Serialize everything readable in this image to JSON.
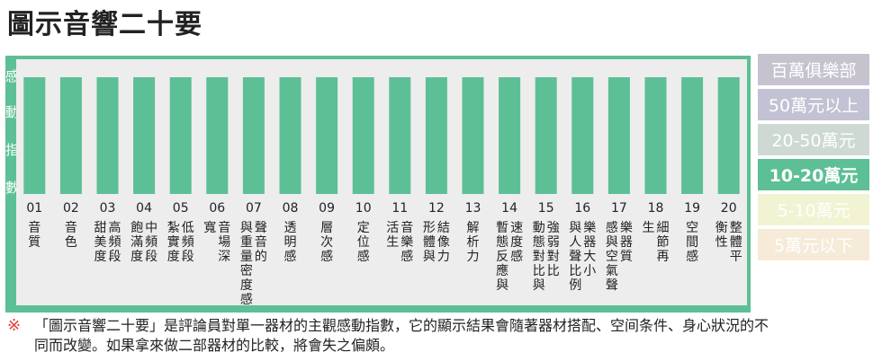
{
  "title": "圖示音響二十要",
  "y_axis_label": [
    "感",
    "動",
    "指",
    "數"
  ],
  "chart_data": {
    "type": "bar",
    "title": "",
    "categories": [
      "01",
      "02",
      "03",
      "04",
      "05",
      "06",
      "07",
      "08",
      "09",
      "10",
      "11",
      "12",
      "13",
      "14",
      "15",
      "16",
      "17",
      "18",
      "19",
      "20"
    ],
    "category_labels": [
      "音質",
      "音色",
      "高頻段",
      "中頻段",
      "低頻段",
      "音場深",
      "聲音的",
      "透明感",
      "層次感",
      "定位感",
      "音樂感",
      "結像力",
      "解析力",
      "速度感",
      "強弱對比",
      "樂器大小",
      "樂器質",
      "細節再",
      "空間感",
      "整體平"
    ],
    "category_labels_col2": [
      "",
      "",
      "甜美度",
      "飽滿度",
      "紮實度",
      "寬",
      "與重量密度感",
      "",
      "",
      "",
      "活生",
      "形體與",
      "",
      "暫態反應與",
      "動態對比與",
      "與人聲比例",
      "感與空氣聲",
      "生",
      "",
      "衡性"
    ],
    "values": [
      100,
      100,
      100,
      100,
      100,
      100,
      100,
      100,
      100,
      100,
      100,
      100,
      100,
      100,
      100,
      100,
      100,
      100,
      100,
      100
    ],
    "ylim": [
      0,
      100
    ],
    "bar_color": "#5dbf95",
    "legend": {
      "placement": "right",
      "items": [
        {
          "label": "百萬俱樂部",
          "color": "#c6c3cf",
          "active": false
        },
        {
          "label": "50萬元以上",
          "color": "#c2c2d4",
          "active": false
        },
        {
          "label": "20-50萬元",
          "color": "#cfd9d3",
          "active": false
        },
        {
          "label": "10-20萬元",
          "color": "#5dbf95",
          "active": true
        },
        {
          "label": "5-10萬元",
          "color": "#f1f3d2",
          "active": false
        },
        {
          "label": "5萬元以下",
          "color": "#f5ebd8",
          "active": false
        }
      ]
    }
  },
  "footnote": {
    "mark": "※",
    "text": "「圖示音響二十要」是評論員對單一器材的主觀感動指數，它的顯示結果會隨著器材搭配、空间条件、身心狀況的不同而改變。如果拿來做二部器材的比較，將會失之偏頗。"
  }
}
